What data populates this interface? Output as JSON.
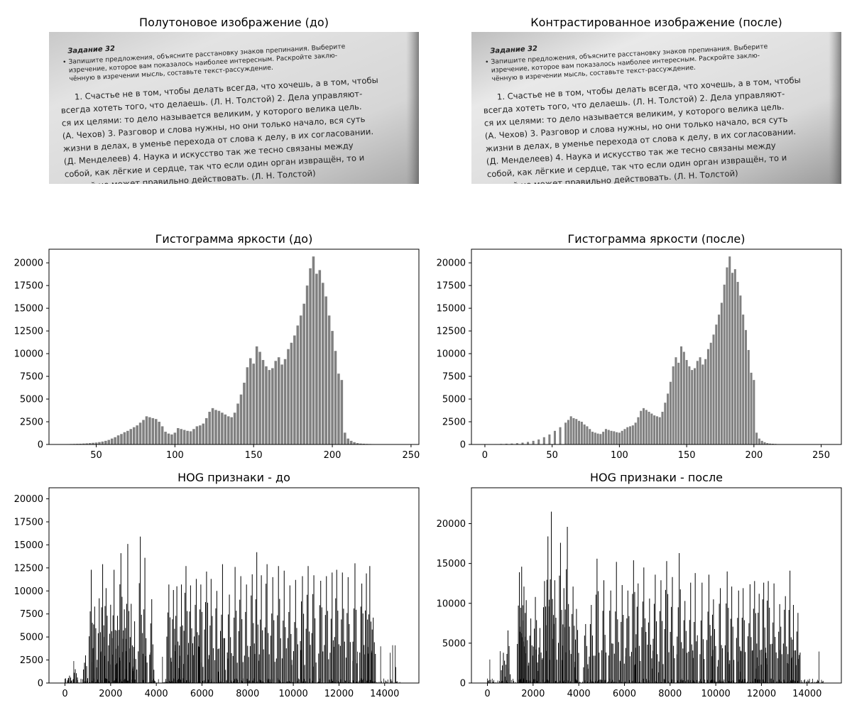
{
  "figure": {
    "image_before_title": "Полутоновое изображение (до)",
    "image_after_title": "Контрастированное изображение (после)",
    "hist_before_title": "Гистограмма яркости (до)",
    "hist_after_title": "Гистограмма яркости (после)",
    "hog_before_title": "HOG признаки - до",
    "hog_after_title": "HOG признаки - после"
  },
  "photo_text": {
    "heading": "Задание 32",
    "instruction_lines": [
      "• Запишите предложения, объясните расстановку знаков препинания. Выберите",
      "изречение, которое вам показалось наиболее интересным.   Раскройте заклю-",
      "чённую в изречении мысль, составьте текст-рассуждение."
    ],
    "body_lines": [
      "1. Счастье не в том, чтобы делать всегда, что хочешь, а в том, чтобы",
      "всегда хотеть того, что делаешь. (Л. Н. Толстой) 2. Дела управляют-",
      "ся их целями: то дело называется великим, у которого велика цель.",
      "(А. Чехов) 3. Разговор и слова нужны, но они только начало, вся суть",
      "жизни в делах, в уменье перехода от слова к делу, в их согласовании.",
      "(Д. Менделеев) 4. Наука и искусство так же тесно связаны между",
      "собой, как лёгкие и сердце, так что если один орган извращён, то и",
      "другой не может правильно действовать. (Л. Н. Толстой)"
    ]
  },
  "colors": {
    "hist_bar": "#808080",
    "hog_line": "#000000",
    "axes": "#000000",
    "background": "#ffffff"
  },
  "chart_data": [
    {
      "id": "hist_before",
      "type": "bar",
      "title": "Гистограмма яркости (до)",
      "xlim": [
        20,
        255
      ],
      "ylim": [
        0,
        21500
      ],
      "xticks": [
        50,
        100,
        150,
        200,
        250
      ],
      "yticks": [
        0,
        2500,
        5000,
        7500,
        10000,
        12500,
        15000,
        17500,
        20000
      ],
      "x": [
        28,
        30,
        32,
        34,
        36,
        38,
        40,
        42,
        44,
        46,
        48,
        50,
        52,
        54,
        56,
        58,
        60,
        62,
        64,
        66,
        68,
        70,
        72,
        74,
        76,
        78,
        80,
        82,
        84,
        86,
        88,
        90,
        92,
        94,
        96,
        98,
        100,
        102,
        104,
        106,
        108,
        110,
        112,
        114,
        116,
        118,
        120,
        122,
        124,
        126,
        128,
        130,
        132,
        134,
        136,
        138,
        140,
        142,
        144,
        146,
        148,
        150,
        152,
        154,
        156,
        158,
        160,
        162,
        164,
        166,
        168,
        170,
        172,
        174,
        176,
        178,
        180,
        182,
        184,
        186,
        188,
        190,
        192,
        194,
        196,
        198,
        200,
        202,
        204,
        206,
        208,
        210,
        212,
        214,
        216,
        218,
        220,
        222,
        224,
        226,
        228,
        230,
        232,
        234,
        236,
        238,
        240,
        242,
        244,
        246
      ],
      "values": [
        20,
        30,
        40,
        50,
        60,
        70,
        80,
        100,
        120,
        150,
        180,
        210,
        260,
        320,
        400,
        500,
        650,
        800,
        1000,
        1150,
        1350,
        1500,
        1700,
        1900,
        2100,
        2400,
        2700,
        3100,
        3000,
        2900,
        2800,
        2500,
        2000,
        1400,
        1200,
        1100,
        1300,
        1800,
        1700,
        1600,
        1500,
        1450,
        1700,
        2000,
        2100,
        2300,
        2900,
        3600,
        4000,
        3800,
        3700,
        3500,
        3300,
        3100,
        3000,
        3500,
        4500,
        5500,
        6800,
        8500,
        9500,
        8900,
        10800,
        10200,
        9300,
        8600,
        8200,
        8400,
        9200,
        9600,
        8800,
        9400,
        10500,
        11200,
        12000,
        13100,
        14200,
        15500,
        17500,
        19400,
        20700,
        18800,
        19200,
        17800,
        16300,
        14200,
        12500,
        10300,
        7800,
        7100,
        1300,
        650,
        400,
        250,
        150,
        100,
        80,
        60,
        50,
        40,
        30,
        25,
        20,
        15,
        12,
        10,
        8,
        6,
        5,
        4
      ]
    },
    {
      "id": "hist_after",
      "type": "bar",
      "title": "Гистограмма яркости (после)",
      "xlim": [
        -10,
        265
      ],
      "ylim": [
        0,
        21500
      ],
      "xticks": [
        0,
        50,
        100,
        150,
        200,
        250
      ],
      "yticks": [
        0,
        2500,
        5000,
        7500,
        10000,
        12500,
        15000,
        17500,
        20000
      ],
      "x": [
        0,
        4,
        8,
        12,
        16,
        20,
        24,
        28,
        32,
        36,
        40,
        44,
        48,
        52,
        56,
        60,
        62,
        64,
        66,
        68,
        70,
        72,
        74,
        76,
        78,
        80,
        82,
        84,
        86,
        88,
        90,
        92,
        94,
        96,
        98,
        100,
        102,
        104,
        106,
        108,
        110,
        112,
        114,
        116,
        118,
        120,
        122,
        124,
        126,
        128,
        130,
        132,
        134,
        136,
        138,
        140,
        142,
        144,
        146,
        148,
        150,
        152,
        154,
        156,
        158,
        160,
        162,
        164,
        166,
        168,
        170,
        172,
        174,
        176,
        178,
        180,
        182,
        184,
        186,
        188,
        190,
        192,
        194,
        196,
        198,
        200,
        202,
        204,
        206,
        208,
        210,
        212,
        214,
        216,
        218,
        220,
        222,
        226,
        230,
        234,
        238,
        242,
        246,
        250,
        254
      ],
      "values": [
        20,
        30,
        40,
        60,
        80,
        100,
        140,
        200,
        280,
        400,
        550,
        800,
        1100,
        1500,
        1900,
        2400,
        2700,
        3100,
        2900,
        2800,
        2600,
        2500,
        2200,
        2000,
        1700,
        1400,
        1300,
        1200,
        1150,
        1400,
        1700,
        1600,
        1500,
        1450,
        1350,
        1300,
        1500,
        1700,
        1900,
        2000,
        2100,
        2400,
        3000,
        3700,
        4000,
        3800,
        3600,
        3400,
        3200,
        3100,
        3000,
        3600,
        4600,
        5600,
        6900,
        8600,
        9600,
        9000,
        10800,
        10200,
        9300,
        8600,
        8200,
        8400,
        9200,
        9600,
        8800,
        9400,
        10500,
        11200,
        12100,
        13200,
        14300,
        15600,
        17600,
        19500,
        20700,
        18900,
        19300,
        17900,
        16400,
        14300,
        12600,
        10400,
        7900,
        7100,
        1300,
        650,
        400,
        250,
        150,
        100,
        80,
        60,
        40,
        30,
        20,
        15,
        10,
        8,
        6,
        5,
        4,
        3,
        2
      ]
    },
    {
      "id": "hog_before",
      "type": "line",
      "title": "HOG признаки - до",
      "xlim": [
        -700,
        15500
      ],
      "ylim": [
        0,
        21200
      ],
      "xticks": [
        0,
        2000,
        4000,
        6000,
        8000,
        10000,
        12000,
        14000
      ],
      "yticks": [
        0,
        2500,
        5000,
        7500,
        10000,
        12500,
        15000,
        17500,
        20000
      ],
      "peaks_x": [
        200,
        450,
        900,
        1150,
        1300,
        1500,
        1650,
        1800,
        2000,
        2150,
        2300,
        2450,
        2600,
        2750,
        2900,
        3050,
        3300,
        3500,
        3800,
        4550,
        4750,
        4900,
        5100,
        5300,
        5500,
        5750,
        5950,
        6200,
        6400,
        6650,
        6900,
        7200,
        7450,
        7700,
        7950,
        8200,
        8400,
        8600,
        8850,
        9100,
        9350,
        9600,
        9850,
        10100,
        10400,
        10650,
        10900,
        11200,
        11450,
        11700,
        11900,
        12150,
        12400,
        12700,
        13000,
        13200,
        13350,
        13500
      ],
      "peaks_y": [
        800,
        1500,
        3000,
        12300,
        8300,
        9200,
        12900,
        10300,
        8500,
        12300,
        7300,
        14100,
        8000,
        15100,
        8600,
        6700,
        15900,
        13600,
        9100,
        10700,
        10100,
        10500,
        10700,
        12700,
        10600,
        11300,
        10700,
        12100,
        11300,
        10000,
        12900,
        9600,
        12600,
        11600,
        10700,
        11800,
        14200,
        11700,
        12900,
        11500,
        12700,
        12200,
        10600,
        11200,
        11600,
        12700,
        11700,
        11100,
        11600,
        12000,
        12300,
        12000,
        11500,
        13000,
        10800,
        11900,
        12700,
        7100
      ],
      "noise_level": 600
    },
    {
      "id": "hog_after",
      "type": "line",
      "title": "HOG признаки - после",
      "xlim": [
        -700,
        15500
      ],
      "ylim": [
        0,
        24500
      ],
      "xticks": [
        0,
        2000,
        4000,
        6000,
        8000,
        10000,
        12000,
        14000
      ],
      "yticks": [
        0,
        5000,
        10000,
        15000,
        20000
      ],
      "peaks_x": [
        700,
        900,
        1400,
        1500,
        1600,
        1700,
        1900,
        2100,
        2300,
        2500,
        2650,
        2800,
        2950,
        3200,
        3350,
        3500,
        3750,
        3900,
        4300,
        4550,
        4800,
        5100,
        5400,
        5650,
        5900,
        6150,
        6400,
        6600,
        6850,
        7100,
        7350,
        7600,
        7850,
        8100,
        8400,
        8650,
        8900,
        9100,
        9400,
        9700,
        9900,
        10200,
        10500,
        10700,
        11000,
        11200,
        11500,
        11700,
        11900,
        12100,
        12300,
        12550,
        12800,
        13050,
        13250,
        13400,
        13600
      ],
      "peaks_y": [
        3800,
        6600,
        13900,
        14600,
        12100,
        10400,
        8100,
        10800,
        6900,
        12800,
        18400,
        21500,
        12900,
        17600,
        11900,
        19600,
        12100,
        9300,
        7400,
        9800,
        15600,
        12900,
        11600,
        15200,
        12300,
        11600,
        15400,
        12500,
        14500,
        10600,
        13600,
        12900,
        15300,
        13300,
        16300,
        10300,
        12600,
        13800,
        12600,
        13600,
        10500,
        11900,
        14000,
        12100,
        11600,
        11900,
        12400,
        12800,
        11200,
        12600,
        12800,
        12500,
        9900,
        10900,
        14100,
        9800,
        8800
      ],
      "noise_level": 650
    }
  ]
}
